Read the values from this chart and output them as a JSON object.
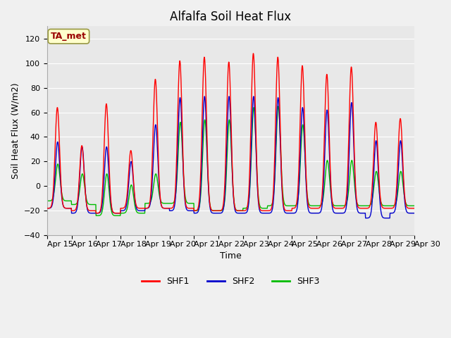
{
  "title": "Alfalfa Soil Heat Flux",
  "ylabel": "Soil Heat Flux (W/m2)",
  "xlabel": "Time",
  "ylim": [
    -40,
    130
  ],
  "yticks": [
    -40,
    -20,
    0,
    20,
    40,
    60,
    80,
    100,
    120
  ],
  "xtick_labels": [
    "Apr 15",
    "Apr 16",
    "Apr 17",
    "Apr 18",
    "Apr 19",
    "Apr 20",
    "Apr 21",
    "Apr 22",
    "Apr 23",
    "Apr 24",
    "Apr 25",
    "Apr 26",
    "Apr 27",
    "Apr 28",
    "Apr 29",
    "Apr 30"
  ],
  "figure_bg": "#f0f0f0",
  "plot_bg": "#e8e8e8",
  "line_colors": {
    "SHF1": "#ff0000",
    "SHF2": "#0000cc",
    "SHF3": "#00bb00"
  },
  "line_width": 1.0,
  "annotation_text": "TA_met",
  "annotation_color": "#990000",
  "annotation_bg": "#ffffcc",
  "annotation_edge": "#999944",
  "title_fontsize": 12,
  "label_fontsize": 9,
  "tick_fontsize": 8,
  "legend_fontsize": 9,
  "peaks_shf1": [
    64,
    33,
    67,
    29,
    87,
    102,
    105,
    101,
    108,
    105,
    98,
    91,
    97,
    52,
    55
  ],
  "peaks_shf2": [
    36,
    32,
    32,
    20,
    50,
    72,
    73,
    73,
    73,
    72,
    64,
    62,
    68,
    37,
    37
  ],
  "peaks_shf3": [
    18,
    10,
    10,
    1,
    10,
    52,
    54,
    54,
    64,
    65,
    50,
    21,
    21,
    12,
    12
  ],
  "trough_shf1": [
    -18,
    -20,
    -22,
    -18,
    -18,
    -18,
    -20,
    -20,
    -20,
    -20,
    -18,
    -18,
    -18,
    -18,
    -18
  ],
  "trough_shf2": [
    -18,
    -22,
    -22,
    -20,
    -18,
    -20,
    -22,
    -22,
    -22,
    -22,
    -22,
    -22,
    -22,
    -26,
    -22
  ],
  "trough_shf3": [
    -12,
    -15,
    -24,
    -22,
    -14,
    -14,
    -20,
    -20,
    -18,
    -16,
    -16,
    -16,
    -16,
    -16,
    -16
  ],
  "n_days": 15,
  "n_points_per_day": 96
}
